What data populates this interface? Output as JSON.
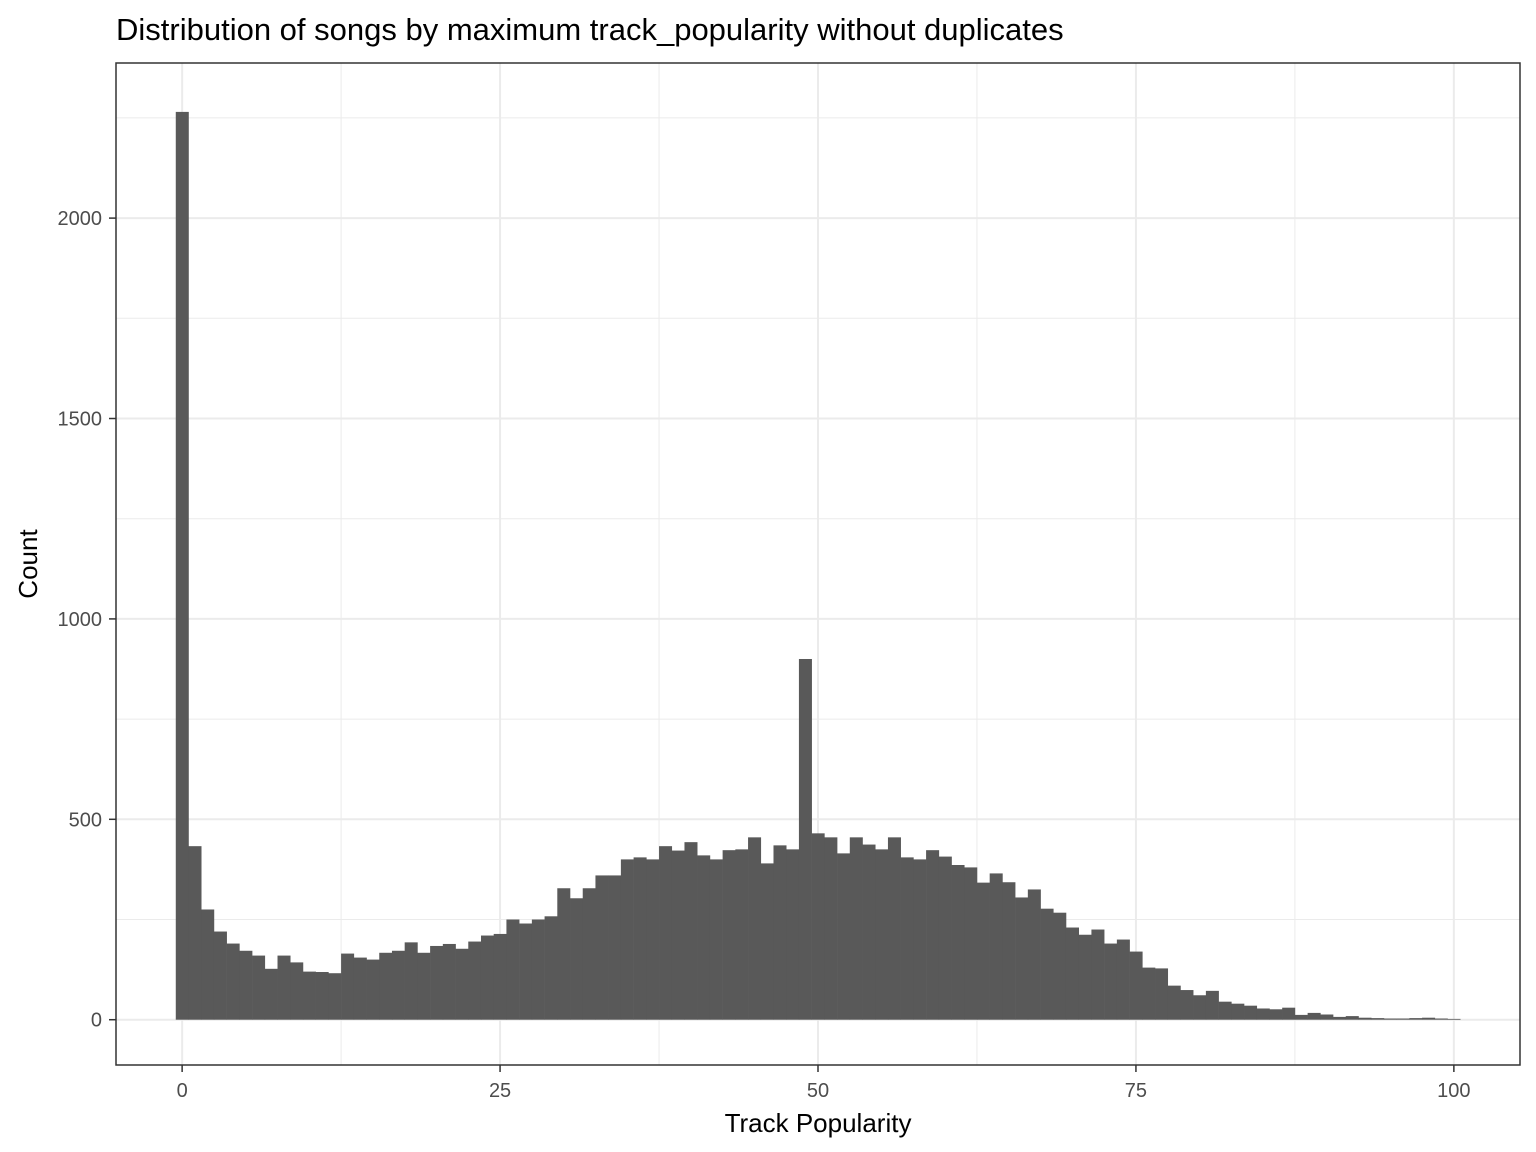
{
  "chart_data": {
    "type": "bar",
    "title": "Distribution of songs by maximum track_popularity without duplicates",
    "xlabel": "Track Popularity",
    "ylabel": "Count",
    "xlim": [
      -5.2,
      105.2
    ],
    "ylim": [
      -113,
      2387
    ],
    "x_ticks": [
      0,
      25,
      50,
      75,
      100
    ],
    "y_ticks": [
      0,
      500,
      1000,
      1500,
      2000
    ],
    "grid": true,
    "bar_color": "#595959",
    "grid_color": "#ebebeb",
    "bins": {
      "x": [
        0,
        1,
        2,
        3,
        4,
        5,
        6,
        7,
        8,
        9,
        10,
        11,
        12,
        13,
        14,
        15,
        16,
        17,
        18,
        19,
        20,
        21,
        22,
        23,
        24,
        25,
        26,
        27,
        28,
        29,
        30,
        31,
        32,
        33,
        34,
        35,
        36,
        37,
        38,
        39,
        40,
        41,
        42,
        43,
        44,
        45,
        46,
        47,
        48,
        49,
        50,
        51,
        52,
        53,
        54,
        55,
        56,
        57,
        58,
        59,
        60,
        61,
        62,
        63,
        64,
        65,
        66,
        67,
        68,
        69,
        70,
        71,
        72,
        73,
        74,
        75,
        76,
        77,
        78,
        79,
        80,
        81,
        82,
        83,
        84,
        85,
        86,
        87,
        88,
        89,
        90,
        91,
        92,
        93,
        94,
        95,
        96,
        97,
        98,
        99,
        100
      ],
      "counts": [
        2265,
        433,
        275,
        220,
        190,
        172,
        160,
        127,
        160,
        143,
        120,
        119,
        116,
        165,
        155,
        150,
        167,
        172,
        193,
        167,
        184,
        189,
        177,
        195,
        210,
        214,
        250,
        240,
        250,
        258,
        328,
        303,
        328,
        360,
        360,
        400,
        405,
        400,
        433,
        422,
        443,
        410,
        400,
        423,
        425,
        455,
        390,
        435,
        425,
        900,
        465,
        455,
        415,
        455,
        437,
        425,
        455,
        405,
        400,
        423,
        407,
        386,
        380,
        342,
        365,
        343,
        305,
        325,
        277,
        267,
        230,
        212,
        225,
        190,
        200,
        170,
        130,
        128,
        85,
        74,
        61,
        72,
        45,
        40,
        35,
        28,
        26,
        30,
        12,
        17,
        13,
        7,
        9,
        5,
        4,
        3,
        3,
        4,
        5,
        3,
        2
      ]
    }
  }
}
